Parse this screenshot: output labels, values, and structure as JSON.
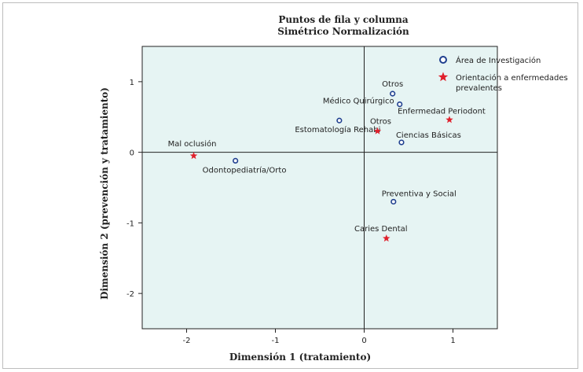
{
  "chart_data": {
    "type": "scatter",
    "title": [
      "Puntos de fila y columna",
      "Simétrico Normalización"
    ],
    "xlabel": "Dimensión 1 (tratamiento)",
    "ylabel": "Dimensión 2 (prevención y tratamiento)",
    "xlim": [
      -2.5,
      1.5
    ],
    "ylim": [
      -2.5,
      1.5
    ],
    "xticks": [
      "-2",
      "-1",
      "0",
      "1"
    ],
    "yticks": [
      "1",
      "0",
      "-1",
      "-2"
    ],
    "xtick_values": [
      -2,
      -1,
      0,
      1
    ],
    "ytick_values": [
      1,
      0,
      -1,
      -2
    ],
    "grid": false,
    "reference_lines": [
      0,
      0
    ],
    "legend_position": "right",
    "colors": {
      "circle": "#1f3f8f",
      "star": "#e0202c",
      "plot_bg": "#e6f4f3"
    },
    "series": [
      {
        "name": "Área de Investigación",
        "marker": "circle",
        "points": [
          {
            "label": "Otros",
            "x": 0.32,
            "y": 0.83
          },
          {
            "label": "Médico Quirúrgico",
            "x": 0.4,
            "y": 0.68
          },
          {
            "label": "Estomatología Rehabi",
            "x": -0.28,
            "y": 0.45
          },
          {
            "label": "Ciencias Básicas",
            "x": 0.42,
            "y": 0.14
          },
          {
            "label": "Odontopediatría/Orto",
            "x": -1.45,
            "y": -0.12
          },
          {
            "label": "Preventiva y Social",
            "x": 0.33,
            "y": -0.7
          }
        ]
      },
      {
        "name": "Orientación a enfermedades prevalentes",
        "marker": "star",
        "points": [
          {
            "label": "Enfermedad Periodont",
            "x": 0.96,
            "y": 0.46
          },
          {
            "label": "Otros",
            "x": 0.15,
            "y": 0.3
          },
          {
            "label": "Mal oclusión",
            "x": -1.92,
            "y": -0.05
          },
          {
            "label": "Caries Dental",
            "x": 0.25,
            "y": -1.22
          }
        ]
      }
    ],
    "legend": [
      {
        "marker": "circle",
        "lines": [
          "Área de Investigación"
        ]
      },
      {
        "marker": "star",
        "lines": [
          "Orientación a enfermedades",
          "prevalentes"
        ]
      }
    ]
  }
}
